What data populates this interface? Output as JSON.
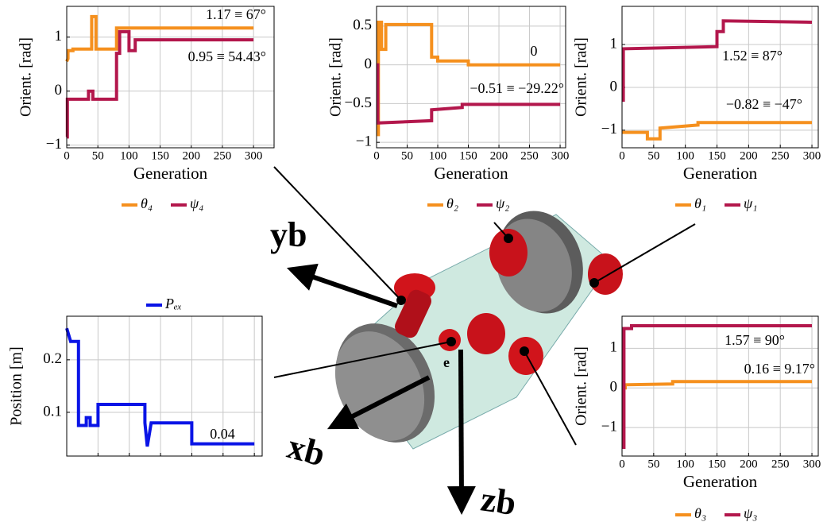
{
  "chart_data": [
    {
      "type": "line",
      "xlabel": "Generation",
      "ylabel": "Orient. [rad]",
      "grid": true,
      "legend": "bottom",
      "xlim": [
        0,
        333
      ],
      "xticks": [
        0,
        50,
        100,
        150,
        200,
        250,
        300
      ],
      "ylim": [
        -1.05,
        1.57
      ],
      "yticks": [
        {
          "value": -1,
          "label": "−1"
        },
        0,
        1
      ],
      "series": [
        {
          "name": "θ₄",
          "color": "#f5901e",
          "x": [
            0,
            2,
            2,
            10,
            10,
            40,
            40,
            47,
            47,
            80,
            80,
            300
          ],
          "values": [
            0.55,
            0.6,
            0.75,
            0.75,
            0.78,
            0.78,
            1.38,
            1.38,
            0.78,
            0.78,
            1.17,
            1.17
          ]
        },
        {
          "name": "ψ₄",
          "color": "#b3174c",
          "x": [
            0,
            1,
            1,
            35,
            35,
            42,
            42,
            80,
            80,
            85,
            85,
            100,
            100,
            110,
            110,
            300
          ],
          "values": [
            -0.85,
            -0.85,
            -0.15,
            -0.15,
            0,
            0,
            -0.15,
            -0.15,
            0.7,
            0.7,
            1.1,
            1.1,
            0.75,
            0.75,
            0.95,
            0.95
          ]
        }
      ],
      "annotations": [
        "1.17 ≡ 67°",
        "0.95 ≡ 54.43°"
      ]
    },
    {
      "type": "line",
      "xlabel": "Generation",
      "ylabel": "Orient. [rad]",
      "grid": true,
      "legend": "bottom",
      "xlim": [
        0,
        309
      ],
      "xticks": [
        0,
        50,
        100,
        150,
        200,
        250,
        300
      ],
      "ylim": [
        -1.07,
        0.755
      ],
      "yticks": [
        {
          "value": -1,
          "label": "−1"
        },
        {
          "value": -0.5,
          "label": "−0.5"
        },
        0,
        0.5
      ],
      "series": [
        {
          "name": "θ₂",
          "color": "#f5901e",
          "x": [
            0,
            3,
            3,
            8,
            8,
            15,
            15,
            90,
            90,
            100,
            100,
            150,
            150,
            300
          ],
          "values": [
            -0.9,
            -0.9,
            0.55,
            0.55,
            0.2,
            0.2,
            0.52,
            0.52,
            0.1,
            0.1,
            0.05,
            0.05,
            0,
            0
          ]
        },
        {
          "name": "ψ₂",
          "color": "#b3174c",
          "x": [
            0,
            2,
            2,
            90,
            90,
            140,
            140,
            300
          ],
          "values": [
            0,
            0,
            -0.75,
            -0.72,
            -0.58,
            -0.55,
            -0.51,
            -0.51
          ]
        }
      ],
      "annotations": [
        "0",
        "−0.51 ≡ −29.22°"
      ]
    },
    {
      "type": "line",
      "xlabel": "Generation",
      "ylabel": "Orient. [rad]",
      "grid": true,
      "legend": "bottom",
      "xlim": [
        0,
        310
      ],
      "xticks": [
        0,
        50,
        100,
        150,
        200,
        250,
        300
      ],
      "ylim": [
        -1.41,
        1.89
      ],
      "yticks": [
        {
          "value": -1,
          "label": "−1"
        },
        0,
        1
      ],
      "series": [
        {
          "name": "θ₁",
          "color": "#f5901e",
          "x": [
            0,
            40,
            40,
            60,
            60,
            120,
            120,
            300
          ],
          "values": [
            -1.05,
            -1.05,
            -1.2,
            -1.2,
            -0.95,
            -0.88,
            -0.82,
            -0.82
          ]
        },
        {
          "name": "ψ₁",
          "color": "#b3174c",
          "x": [
            0,
            2,
            2,
            150,
            150,
            160,
            160,
            300
          ],
          "values": [
            -0.3,
            -0.3,
            0.9,
            0.95,
            1.3,
            1.3,
            1.55,
            1.52
          ]
        }
      ],
      "annotations": [
        "1.52 ≡ 87°",
        "−0.82 ≡ −47°"
      ]
    },
    {
      "type": "line",
      "xlabel": "Generation",
      "ylabel": "Orient. [rad]",
      "grid": true,
      "legend": "bottom",
      "xlim": [
        0,
        310
      ],
      "xticks": [
        0,
        50,
        100,
        150,
        200,
        250,
        300
      ],
      "ylim": [
        -1.72,
        1.81
      ],
      "yticks": [
        {
          "value": -1,
          "label": "−1"
        },
        0,
        1
      ],
      "series": [
        {
          "name": "θ₃",
          "color": "#f5901e",
          "x": [
            0,
            5,
            5,
            80,
            80,
            300
          ],
          "values": [
            0,
            0,
            0.08,
            0.1,
            0.16,
            0.16
          ]
        },
        {
          "name": "ψ₃",
          "color": "#b3174c",
          "x": [
            0,
            3,
            3,
            15,
            15,
            300
          ],
          "values": [
            -1.5,
            -1.5,
            1.5,
            1.5,
            1.57,
            1.57
          ]
        }
      ],
      "annotations": [
        "1.57 ≡ 90°",
        "0.16 ≡ 9.17°"
      ]
    },
    {
      "type": "line",
      "ylabel": "Position [m]",
      "grid": true,
      "legend": "top",
      "xticklabels": false,
      "xlim": [
        0,
        250
      ],
      "xticks": [
        40,
        80,
        120,
        160,
        200,
        240
      ],
      "ylim": [
        0.0167,
        0.283
      ],
      "yticks": [
        0.1,
        0.2
      ],
      "series": [
        {
          "name": "Pₑₓ",
          "color": "#0a14e6",
          "x": [
            0,
            5,
            5,
            15,
            15,
            25,
            25,
            30,
            30,
            40,
            40,
            100,
            100,
            103,
            103,
            108,
            108,
            160,
            160,
            240
          ],
          "values": [
            0.26,
            0.235,
            0.235,
            0.235,
            0.075,
            0.075,
            0.09,
            0.09,
            0.075,
            0.075,
            0.115,
            0.115,
            0.08,
            0.035,
            0.035,
            0.08,
            0.08,
            0.08,
            0.04,
            0.04
          ]
        }
      ],
      "annotations": [
        "0.04"
      ]
    }
  ],
  "diagram": {
    "labels": [
      "yb",
      "xb",
      "zb",
      "e"
    ]
  }
}
